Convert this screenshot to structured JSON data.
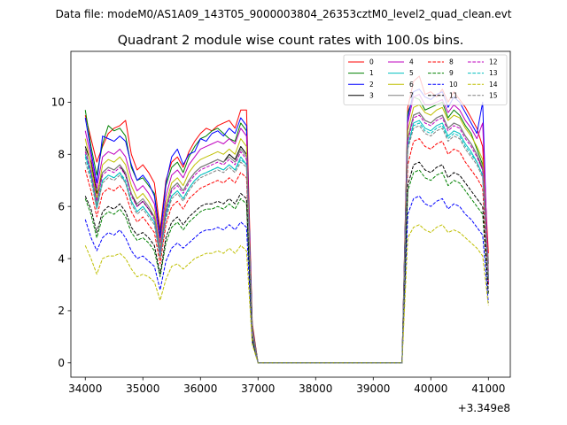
{
  "figure": {
    "suptitle": "Data file: modeM0/AS1A09_143T05_9000003804_26353cztM0_level2_quad_clean.evt"
  },
  "chart_data": {
    "type": "line",
    "title": "Quadrant 2 module wise count rates with 100.0s bins.",
    "xlabel": "",
    "ylabel": "",
    "x_offset_label": "+3.349e8",
    "xlim": [
      33750,
      41380
    ],
    "ylim": [
      -0.55,
      11.95
    ],
    "x_ticks": [
      34000,
      35000,
      36000,
      37000,
      38000,
      39000,
      40000,
      41000
    ],
    "y_ticks": [
      0,
      2,
      4,
      6,
      8,
      10
    ],
    "grid": false,
    "legend": {
      "position": "top-right",
      "columns": 4
    },
    "x": [
      34000,
      34100,
      34200,
      34300,
      34400,
      34500,
      34600,
      34700,
      34800,
      34900,
      35000,
      35100,
      35200,
      35300,
      35400,
      35500,
      35600,
      35700,
      35800,
      35900,
      36000,
      36100,
      36200,
      36300,
      36400,
      36500,
      36600,
      36700,
      36800,
      36900,
      37000,
      37100,
      37200,
      37300,
      37400,
      37500,
      37600,
      37700,
      37800,
      37900,
      38000,
      38100,
      38200,
      38300,
      38400,
      38500,
      38600,
      38700,
      38800,
      38900,
      39000,
      39100,
      39200,
      39300,
      39400,
      39500,
      39600,
      39700,
      39800,
      39900,
      40000,
      40100,
      40200,
      40300,
      40400,
      40500,
      40600,
      40700,
      40800,
      40900,
      41000
    ],
    "series": [
      {
        "name": "0",
        "color": "#ff0000",
        "style": "solid",
        "values": [
          9.5,
          8.6,
          7.7,
          8.3,
          8.8,
          9.0,
          9.1,
          9.3,
          8.0,
          7.4,
          7.6,
          7.3,
          6.9,
          5.1,
          7.0,
          7.7,
          7.9,
          7.5,
          8.1,
          8.5,
          8.8,
          9.0,
          8.9,
          9.1,
          9.2,
          9.3,
          9.0,
          9.7,
          9.7,
          1.5,
          0,
          0,
          0,
          0,
          0,
          0,
          0,
          0,
          0,
          0,
          0,
          0,
          0,
          0,
          0,
          0,
          0,
          0,
          0,
          0,
          0,
          0,
          0,
          0,
          0,
          0,
          9.8,
          10.8,
          11.0,
          10.3,
          10.4,
          10.2,
          10.5,
          10.0,
          10.4,
          10.1,
          9.8,
          9.4,
          9.0,
          8.3,
          4.2
        ]
      },
      {
        "name": "1",
        "color": "#008000",
        "style": "solid",
        "values": [
          9.7,
          8.3,
          7.2,
          8.4,
          9.1,
          8.9,
          9.0,
          8.7,
          7.5,
          7.0,
          7.1,
          6.8,
          6.5,
          4.9,
          6.8,
          7.5,
          7.7,
          7.3,
          7.9,
          8.3,
          8.6,
          8.7,
          8.9,
          9.0,
          8.8,
          8.6,
          8.5,
          9.2,
          8.9,
          1.4,
          0,
          0,
          0,
          0,
          0,
          0,
          0,
          0,
          0,
          0,
          0,
          0,
          0,
          0,
          0,
          0,
          0,
          0,
          0,
          0,
          0,
          0,
          0,
          0,
          0,
          0,
          9.6,
          10.2,
          10.1,
          9.7,
          9.8,
          9.9,
          10.0,
          9.4,
          9.7,
          9.5,
          9.1,
          8.8,
          8.2,
          7.6,
          3.8
        ]
      },
      {
        "name": "2",
        "color": "#0000ff",
        "style": "solid",
        "values": [
          9.4,
          8.1,
          6.9,
          8.7,
          8.6,
          8.5,
          8.7,
          8.5,
          7.6,
          7.0,
          7.2,
          6.9,
          6.4,
          4.8,
          6.9,
          7.9,
          8.2,
          7.6,
          8.0,
          8.1,
          8.6,
          8.5,
          8.8,
          8.9,
          8.7,
          9.0,
          8.8,
          9.4,
          9.1,
          1.3,
          0,
          0,
          0,
          0,
          0,
          0,
          0,
          0,
          0,
          0,
          0,
          0,
          0,
          0,
          0,
          0,
          0,
          0,
          0,
          0,
          0,
          0,
          0,
          0,
          0,
          0,
          9.4,
          10.4,
          10.5,
          10.2,
          10.1,
          10.3,
          10.4,
          9.8,
          10.2,
          10.0,
          9.6,
          9.2,
          8.8,
          10.0,
          3.0
        ]
      },
      {
        "name": "3",
        "color": "#000000",
        "style": "solid",
        "values": [
          8.3,
          7.7,
          6.5,
          7.3,
          7.5,
          7.4,
          7.6,
          7.2,
          6.5,
          6.0,
          6.2,
          5.9,
          5.6,
          4.3,
          5.9,
          6.7,
          6.9,
          6.6,
          7.0,
          7.3,
          7.5,
          7.6,
          7.7,
          7.8,
          7.7,
          8.0,
          7.8,
          8.3,
          8.0,
          1.2,
          0,
          0,
          0,
          0,
          0,
          0,
          0,
          0,
          0,
          0,
          0,
          0,
          0,
          0,
          0,
          0,
          0,
          0,
          0,
          0,
          0,
          0,
          0,
          0,
          0,
          0,
          8.6,
          9.5,
          9.6,
          9.3,
          9.2,
          9.4,
          9.5,
          9.0,
          9.2,
          9.1,
          8.7,
          8.4,
          8.0,
          7.4,
          3.2
        ]
      },
      {
        "name": "4",
        "color": "#bf00bf",
        "style": "solid",
        "values": [
          8.9,
          7.9,
          6.7,
          7.9,
          8.1,
          8.0,
          8.2,
          7.9,
          7.1,
          6.6,
          6.8,
          6.5,
          6.1,
          4.6,
          6.4,
          7.2,
          7.4,
          7.1,
          7.6,
          7.9,
          8.2,
          8.3,
          8.4,
          8.5,
          8.4,
          8.6,
          8.4,
          9.0,
          8.7,
          1.3,
          0,
          0,
          0,
          0,
          0,
          0,
          0,
          0,
          0,
          0,
          0,
          0,
          0,
          0,
          0,
          0,
          0,
          0,
          0,
          0,
          0,
          0,
          0,
          0,
          0,
          0,
          9.2,
          10.2,
          10.3,
          9.9,
          9.9,
          10.0,
          10.1,
          9.6,
          9.9,
          9.7,
          9.3,
          9.0,
          8.6,
          9.2,
          3.5
        ]
      },
      {
        "name": "5",
        "color": "#00bfbf",
        "style": "solid",
        "values": [
          8.0,
          7.2,
          5.9,
          7.0,
          7.2,
          7.1,
          7.3,
          6.9,
          6.2,
          5.8,
          6.0,
          5.7,
          5.4,
          4.1,
          5.7,
          6.4,
          6.6,
          6.3,
          6.7,
          7.0,
          7.2,
          7.3,
          7.4,
          7.5,
          7.4,
          7.6,
          7.4,
          7.9,
          7.6,
          1.1,
          0,
          0,
          0,
          0,
          0,
          0,
          0,
          0,
          0,
          0,
          0,
          0,
          0,
          0,
          0,
          0,
          0,
          0,
          0,
          0,
          0,
          0,
          0,
          0,
          0,
          0,
          8.3,
          9.2,
          9.3,
          9.0,
          8.9,
          9.1,
          9.2,
          8.7,
          8.9,
          8.8,
          8.4,
          8.1,
          7.7,
          7.2,
          3.3
        ]
      },
      {
        "name": "6",
        "color": "#bfbf00",
        "style": "solid",
        "values": [
          8.6,
          7.6,
          6.3,
          7.6,
          7.8,
          7.7,
          7.9,
          7.6,
          6.8,
          6.3,
          6.5,
          6.2,
          5.8,
          4.4,
          6.1,
          6.9,
          7.1,
          6.8,
          7.3,
          7.6,
          7.8,
          7.9,
          8.0,
          8.1,
          8.0,
          8.2,
          8.0,
          8.6,
          8.3,
          1.2,
          0,
          0,
          0,
          0,
          0,
          0,
          0,
          0,
          0,
          0,
          0,
          0,
          0,
          0,
          0,
          0,
          0,
          0,
          0,
          0,
          0,
          0,
          0,
          0,
          0,
          0,
          8.9,
          9.8,
          9.9,
          9.6,
          9.5,
          9.7,
          9.8,
          9.3,
          9.5,
          9.4,
          9.0,
          8.7,
          8.3,
          7.8,
          3.4
        ]
      },
      {
        "name": "7",
        "color": "#808080",
        "style": "solid",
        "values": [
          8.2,
          7.4,
          6.1,
          7.3,
          7.5,
          7.4,
          7.6,
          7.3,
          6.5,
          6.1,
          6.3,
          6.0,
          5.6,
          4.3,
          5.9,
          6.7,
          6.9,
          6.6,
          7.0,
          7.3,
          7.5,
          7.6,
          7.7,
          7.8,
          7.7,
          7.9,
          7.7,
          8.2,
          7.9,
          1.2,
          0,
          0,
          0,
          0,
          0,
          0,
          0,
          0,
          0,
          0,
          0,
          0,
          0,
          0,
          0,
          0,
          0,
          0,
          0,
          0,
          0,
          0,
          0,
          0,
          0,
          0,
          8.6,
          9.5,
          9.6,
          9.3,
          9.2,
          9.4,
          9.5,
          9.0,
          9.2,
          9.1,
          8.7,
          8.4,
          8.0,
          7.5,
          3.3
        ]
      },
      {
        "name": "8",
        "color": "#ff0000",
        "style": "dashed",
        "values": [
          7.4,
          6.6,
          5.6,
          6.5,
          6.7,
          6.6,
          6.8,
          6.5,
          5.8,
          5.4,
          5.6,
          5.3,
          5.0,
          3.8,
          5.3,
          6.0,
          6.2,
          5.9,
          6.3,
          6.5,
          6.7,
          6.8,
          6.9,
          7.0,
          6.9,
          7.1,
          6.9,
          7.3,
          7.1,
          1.0,
          0,
          0,
          0,
          0,
          0,
          0,
          0,
          0,
          0,
          0,
          0,
          0,
          0,
          0,
          0,
          0,
          0,
          0,
          0,
          0,
          0,
          0,
          0,
          0,
          0,
          0,
          7.6,
          8.5,
          8.6,
          8.3,
          8.2,
          8.4,
          8.5,
          8.0,
          8.2,
          8.1,
          7.7,
          7.4,
          7.1,
          6.7,
          3.0
        ]
      },
      {
        "name": "9",
        "color": "#008000",
        "style": "dashed",
        "values": [
          6.3,
          5.7,
          4.8,
          5.6,
          5.8,
          5.7,
          5.9,
          5.6,
          5.0,
          4.7,
          4.8,
          4.6,
          4.3,
          3.3,
          4.6,
          5.2,
          5.4,
          5.1,
          5.4,
          5.6,
          5.8,
          5.9,
          5.9,
          6.0,
          5.9,
          6.1,
          5.9,
          6.3,
          6.1,
          0.9,
          0,
          0,
          0,
          0,
          0,
          0,
          0,
          0,
          0,
          0,
          0,
          0,
          0,
          0,
          0,
          0,
          0,
          0,
          0,
          0,
          0,
          0,
          0,
          0,
          0,
          0,
          6.6,
          7.3,
          7.4,
          7.1,
          7.0,
          7.2,
          7.3,
          6.8,
          7.0,
          6.9,
          6.6,
          6.3,
          6.0,
          5.7,
          2.6
        ]
      },
      {
        "name": "10",
        "color": "#0000ff",
        "style": "dashed",
        "values": [
          5.5,
          4.8,
          4.3,
          4.8,
          5.0,
          4.9,
          5.1,
          4.8,
          4.3,
          4.0,
          4.1,
          3.9,
          3.7,
          2.8,
          3.9,
          4.4,
          4.6,
          4.4,
          4.6,
          4.8,
          5.0,
          5.1,
          5.1,
          5.2,
          5.1,
          5.3,
          5.1,
          5.4,
          5.2,
          0.8,
          0,
          0,
          0,
          0,
          0,
          0,
          0,
          0,
          0,
          0,
          0,
          0,
          0,
          0,
          0,
          0,
          0,
          0,
          0,
          0,
          0,
          0,
          0,
          0,
          0,
          0,
          5.7,
          6.3,
          6.4,
          6.1,
          6.0,
          6.2,
          6.3,
          5.9,
          6.1,
          6.0,
          5.7,
          5.5,
          5.2,
          4.9,
          2.3
        ]
      },
      {
        "name": "11",
        "color": "#000000",
        "style": "dashed",
        "values": [
          6.4,
          5.9,
          5.0,
          5.8,
          6.0,
          5.9,
          6.1,
          5.8,
          5.2,
          4.9,
          5.0,
          4.8,
          4.5,
          3.4,
          4.8,
          5.4,
          5.6,
          5.3,
          5.6,
          5.8,
          6.0,
          6.1,
          6.1,
          6.2,
          6.1,
          6.3,
          6.1,
          6.5,
          6.3,
          0.9,
          0,
          0,
          0,
          0,
          0,
          0,
          0,
          0,
          0,
          0,
          0,
          0,
          0,
          0,
          0,
          0,
          0,
          0,
          0,
          0,
          0,
          0,
          0,
          0,
          0,
          0,
          6.8,
          7.6,
          7.7,
          7.4,
          7.3,
          7.5,
          7.6,
          7.1,
          7.3,
          7.2,
          6.9,
          6.6,
          6.3,
          6.0,
          2.7
        ]
      },
      {
        "name": "12",
        "color": "#bf00bf",
        "style": "dashed",
        "values": [
          8.1,
          7.3,
          6.2,
          7.2,
          7.4,
          7.3,
          7.5,
          7.2,
          6.4,
          6.0,
          6.2,
          5.9,
          5.5,
          4.2,
          5.8,
          6.6,
          6.8,
          6.5,
          6.9,
          7.2,
          7.4,
          7.5,
          7.6,
          7.7,
          7.6,
          7.8,
          7.6,
          8.1,
          7.8,
          1.1,
          0,
          0,
          0,
          0,
          0,
          0,
          0,
          0,
          0,
          0,
          0,
          0,
          0,
          0,
          0,
          0,
          0,
          0,
          0,
          0,
          0,
          0,
          0,
          0,
          0,
          0,
          8.5,
          9.4,
          9.5,
          9.2,
          9.1,
          9.3,
          9.4,
          8.9,
          9.1,
          9.0,
          8.6,
          8.3,
          7.9,
          7.4,
          3.3
        ]
      },
      {
        "name": "13",
        "color": "#00bfbf",
        "style": "dashed",
        "values": [
          7.9,
          7.1,
          6.0,
          7.0,
          7.2,
          7.1,
          7.3,
          7.0,
          6.2,
          5.8,
          6.0,
          5.7,
          5.4,
          4.1,
          5.6,
          6.4,
          6.6,
          6.3,
          6.7,
          7.0,
          7.2,
          7.3,
          7.4,
          7.5,
          7.4,
          7.6,
          7.4,
          7.8,
          7.6,
          1.1,
          0,
          0,
          0,
          0,
          0,
          0,
          0,
          0,
          0,
          0,
          0,
          0,
          0,
          0,
          0,
          0,
          0,
          0,
          0,
          0,
          0,
          0,
          0,
          0,
          0,
          0,
          8.3,
          9.1,
          9.2,
          8.9,
          8.8,
          9.0,
          9.1,
          8.6,
          8.8,
          8.7,
          8.3,
          8.0,
          7.7,
          7.2,
          3.2
        ]
      },
      {
        "name": "14",
        "color": "#bfbf00",
        "style": "dashed",
        "values": [
          4.5,
          4.0,
          3.4,
          4.0,
          4.1,
          4.1,
          4.2,
          4.0,
          3.6,
          3.3,
          3.4,
          3.3,
          3.1,
          2.4,
          3.2,
          3.7,
          3.8,
          3.6,
          3.8,
          4.0,
          4.1,
          4.2,
          4.2,
          4.3,
          4.2,
          4.4,
          4.2,
          4.5,
          4.3,
          0.7,
          0,
          0,
          0,
          0,
          0,
          0,
          0,
          0,
          0,
          0,
          0,
          0,
          0,
          0,
          0,
          0,
          0,
          0,
          0,
          0,
          0,
          0,
          0,
          0,
          0,
          0,
          4.8,
          5.2,
          5.3,
          5.1,
          5.0,
          5.2,
          5.3,
          5.0,
          5.1,
          5.0,
          4.8,
          4.6,
          4.4,
          4.1,
          2.2
        ]
      },
      {
        "name": "15",
        "color": "#808080",
        "style": "dashed",
        "values": [
          7.7,
          7.0,
          5.9,
          6.9,
          7.1,
          7.0,
          7.2,
          6.9,
          6.1,
          5.7,
          5.9,
          5.6,
          5.3,
          4.0,
          5.5,
          6.3,
          6.5,
          6.2,
          6.6,
          6.9,
          7.1,
          7.2,
          7.3,
          7.4,
          7.3,
          7.5,
          7.3,
          7.7,
          7.5,
          1.1,
          0,
          0,
          0,
          0,
          0,
          0,
          0,
          0,
          0,
          0,
          0,
          0,
          0,
          0,
          0,
          0,
          0,
          0,
          0,
          0,
          0,
          0,
          0,
          0,
          0,
          0,
          8.2,
          9.0,
          9.1,
          8.8,
          8.7,
          8.9,
          9.0,
          8.5,
          8.7,
          8.6,
          8.2,
          7.9,
          7.6,
          7.1,
          3.2
        ]
      }
    ]
  }
}
